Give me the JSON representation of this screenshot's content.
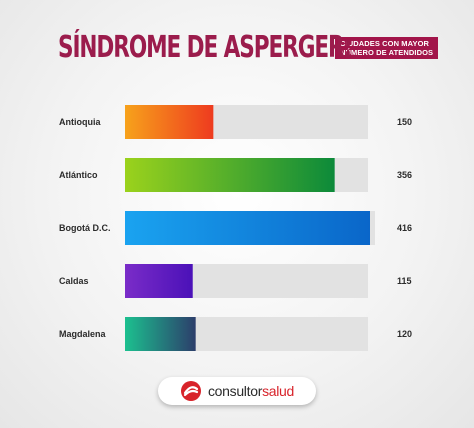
{
  "header": {
    "title": "SÍNDROME DE ASPERGER:",
    "subtitle_line1": "CIUDADES CON MAYOR",
    "subtitle_line2": "NÚMERO DE ATENDIDOS"
  },
  "chart_data": {
    "type": "bar",
    "orientation": "horizontal",
    "categories": [
      "Antioquia",
      "Atlántico",
      "Bogotá D.C.",
      "Caldas",
      "Magdalena"
    ],
    "values": [
      150,
      356,
      416,
      115,
      120
    ],
    "xlim": [
      0,
      416
    ],
    "colors": [
      [
        "#f7a21b",
        "#ee3b1f"
      ],
      [
        "#9bd21c",
        "#0c8a3a"
      ],
      [
        "#1aa3f0",
        "#0a66c9"
      ],
      [
        "#7a2cc8",
        "#4b11b8"
      ],
      [
        "#1cc08f",
        "#2c3e6b"
      ]
    ],
    "track_color": "#e2e2e2"
  },
  "brand": {
    "name_part1": "consultor",
    "name_part2": "salud"
  }
}
